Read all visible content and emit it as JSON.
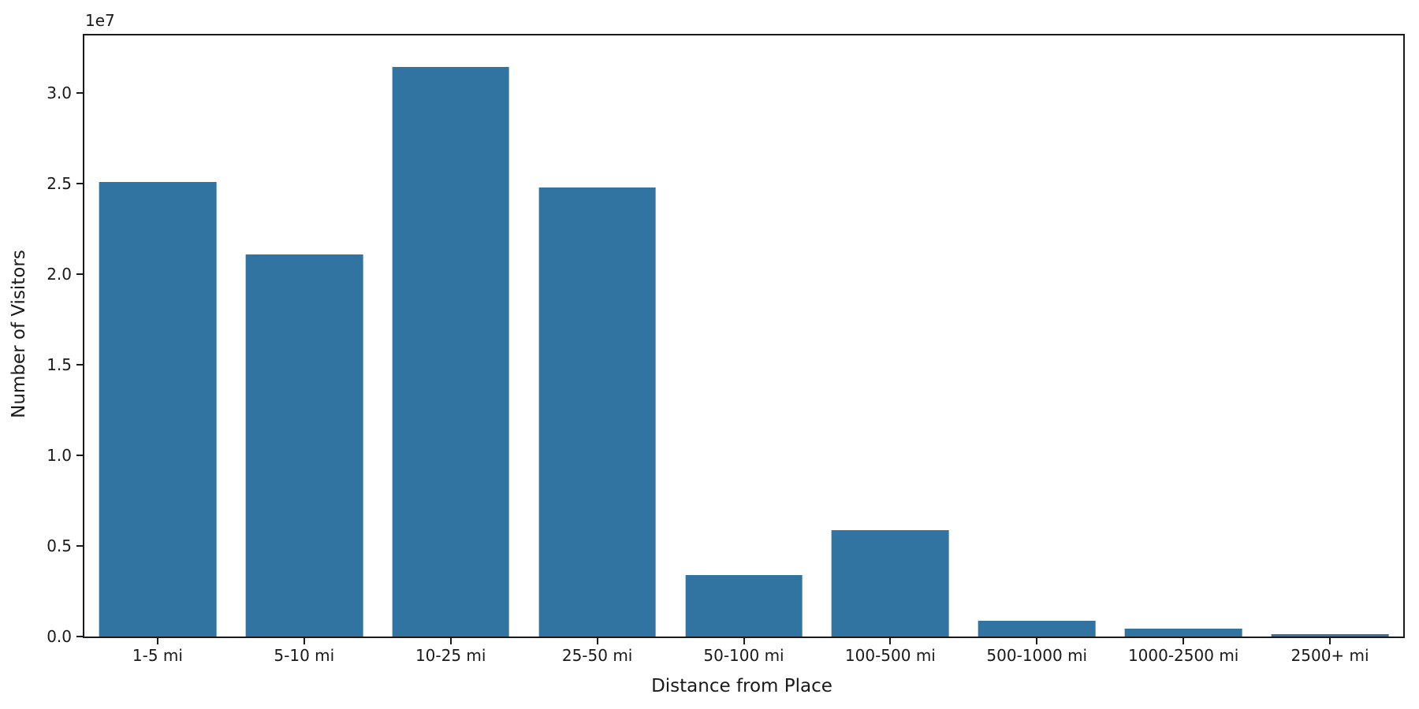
{
  "figure": {
    "background": "#ffffff",
    "spine_color": "#1a1a1a",
    "text_color": "#1a1a1a"
  },
  "chart_data": {
    "type": "bar",
    "title": "",
    "xlabel": "Distance from Place",
    "ylabel": "Number of Visitors",
    "offset_label": "1e7",
    "categories": [
      "1-5 mi",
      "5-10 mi",
      "10-25 mi",
      "25-50 mi",
      "50-100 mi",
      "100-500 mi",
      "500-1000 mi",
      "1000-2500 mi",
      "2500+ mi"
    ],
    "values": [
      25100000,
      21100000,
      31450000,
      24800000,
      3400000,
      5850000,
      850000,
      450000,
      120000
    ],
    "ylim": [
      0,
      33170000
    ],
    "yticks": [
      0,
      5000000,
      10000000,
      15000000,
      20000000,
      25000000,
      30000000
    ],
    "ytick_labels": [
      "0.0",
      "0.5",
      "1.0",
      "1.5",
      "2.0",
      "2.5",
      "3.0"
    ],
    "bar_color": "#3274a1",
    "bar_width_fraction": 0.8,
    "grid": false,
    "legend": null,
    "spines": [
      "top",
      "right",
      "bottom",
      "left"
    ]
  }
}
